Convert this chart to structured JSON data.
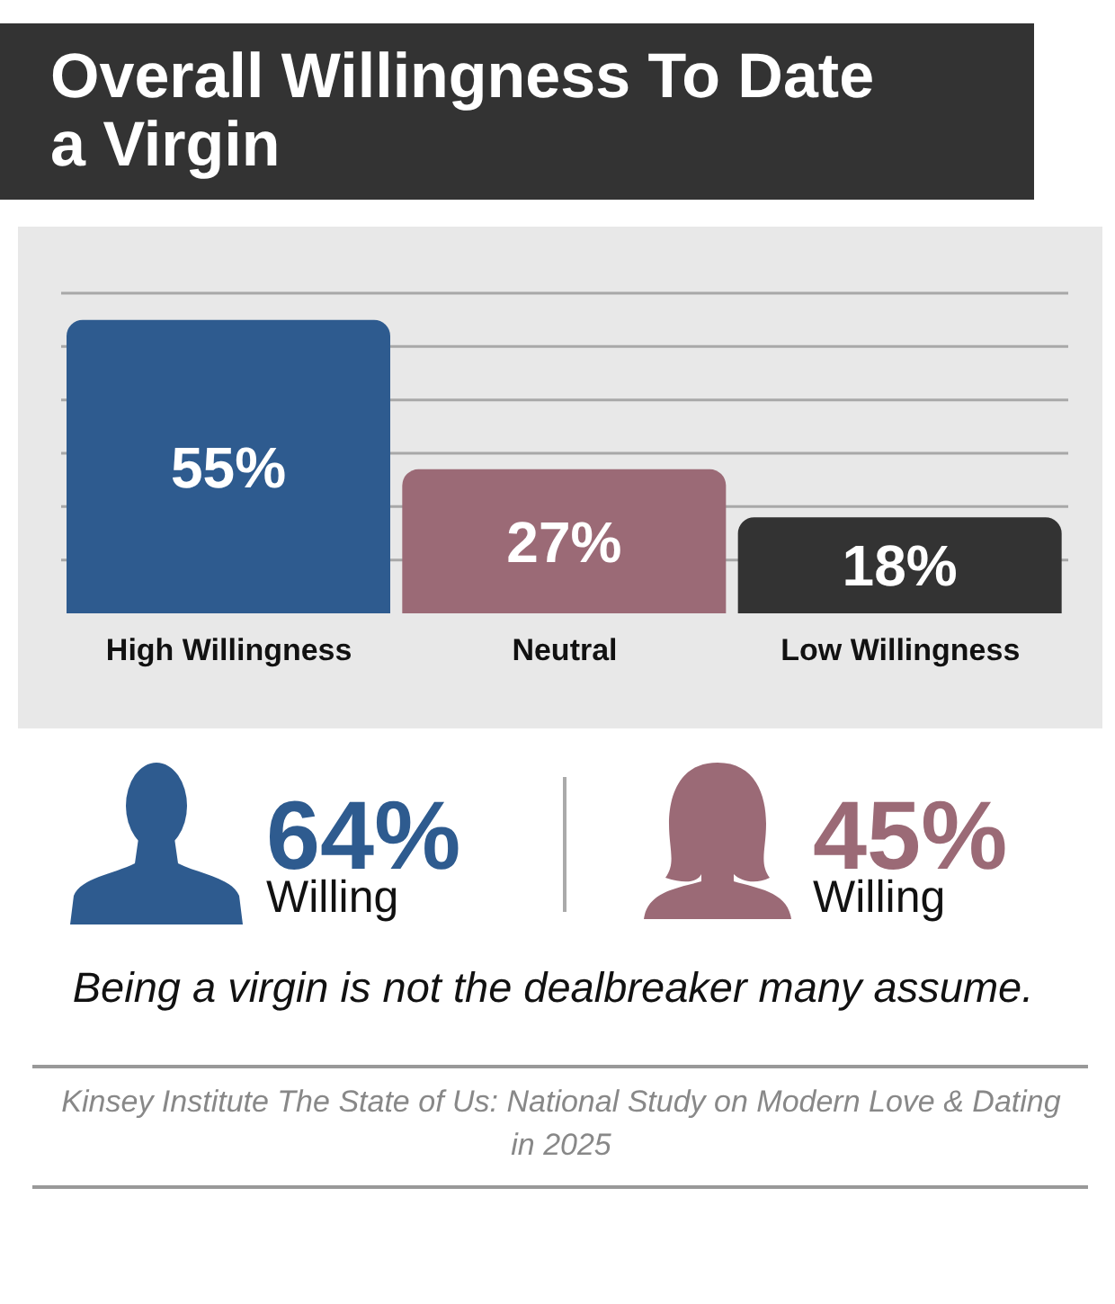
{
  "chart_data": {
    "type": "bar",
    "title": "Overall Willingness To Date a Virgin",
    "categories": [
      "High Willingness",
      "Neutral",
      "Low Willingness"
    ],
    "values": [
      55,
      27,
      18
    ],
    "colors": [
      "#2e5b8f",
      "#9b6a76",
      "#333333"
    ],
    "value_labels": [
      "55%",
      "27%",
      "18%"
    ],
    "ylim": [
      0,
      60
    ],
    "yticks": [
      {
        "value": 10,
        "label": null
      },
      {
        "value": 20,
        "label": null
      },
      {
        "value": 30,
        "label": null
      },
      {
        "value": 40,
        "label": null
      },
      {
        "value": 50,
        "label": null
      },
      {
        "value": 60,
        "label": null
      }
    ],
    "grid": "y",
    "tick_labels": "x",
    "annotations": [
      "64%",
      "Willing",
      "45%",
      "Willing",
      "Being a virgin is not the dealbreaker many assume.",
      "Kinsey Institute The State of Us: National Study on Modern Love & Dating in 2025"
    ]
  }
}
